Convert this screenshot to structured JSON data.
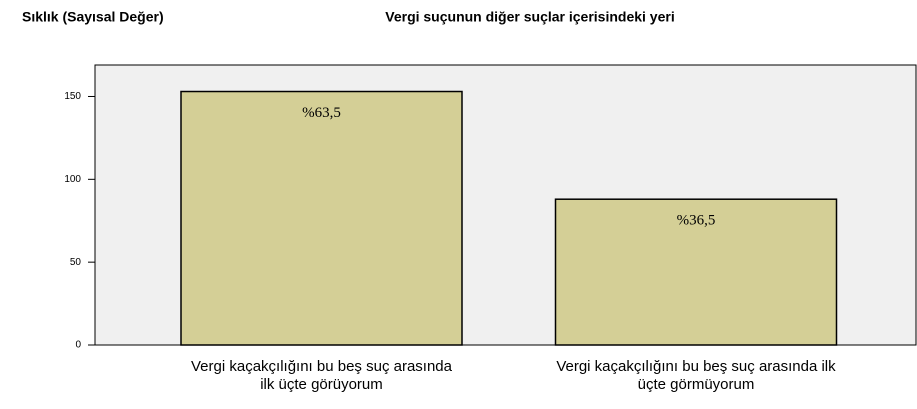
{
  "chart_data": {
    "type": "bar",
    "title": "Vergi suçunun diğer suçlar içerisindeki yeri",
    "y_label": "Sıklık (Sayısal Değer)",
    "categories": [
      [
        "Vergi kaçakçılığını bu beş suç arasında",
        "ilk üçte görüyorum"
      ],
      [
        "Vergi kaçakçılığını bu beş suç arasında ilk",
        "üçte görmüyorum"
      ]
    ],
    "values": [
      153,
      88
    ],
    "annotations": [
      "%63,5",
      "%36,5"
    ],
    "color": "#d4cf96",
    "ylim": [
      0,
      169
    ],
    "yticks": [
      0,
      50,
      100,
      150
    ]
  }
}
